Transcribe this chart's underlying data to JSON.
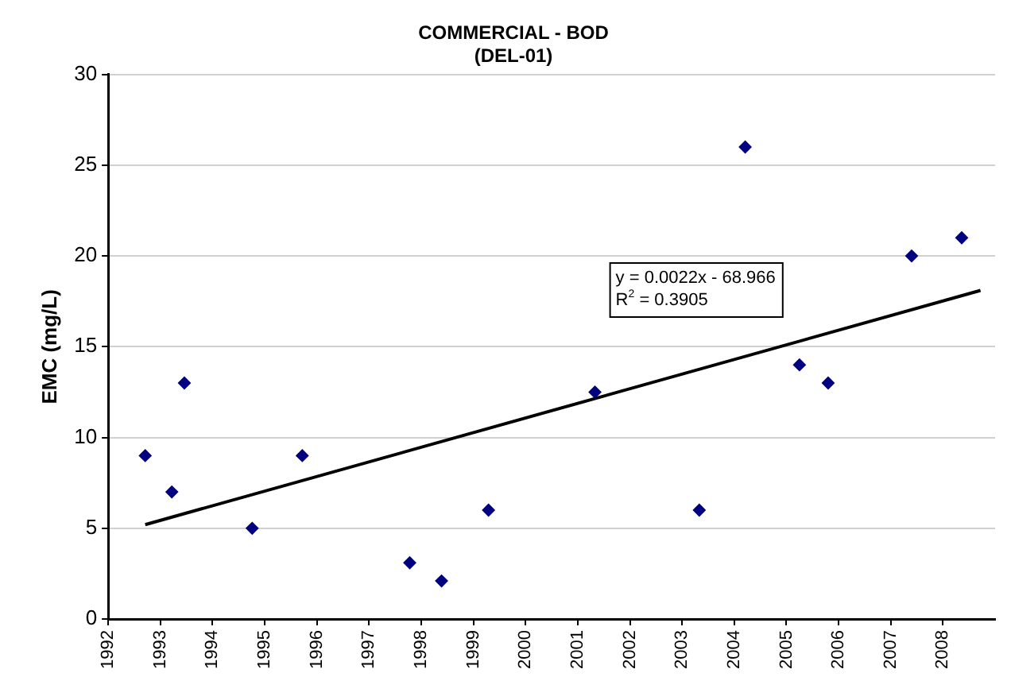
{
  "chart_data": {
    "type": "scatter",
    "title": [
      "COMMERCIAL - BOD",
      "(DEL-01)"
    ],
    "ylabel": "EMC (mg/L)",
    "xlim": [
      1992,
      2009
    ],
    "xticks": [
      1992,
      1993,
      1994,
      1995,
      1996,
      1997,
      1998,
      1999,
      2000,
      2001,
      2002,
      2003,
      2004,
      2005,
      2006,
      2007,
      2008
    ],
    "ylim": [
      0,
      30
    ],
    "yticks": [
      0,
      5,
      10,
      15,
      20,
      25,
      30
    ],
    "grid": "y",
    "legend": false,
    "marker": "diamond",
    "series": [
      {
        "type": "scatter",
        "color": "#000080",
        "x": [
          1992.71,
          1993.22,
          1993.46,
          1994.76,
          1995.72,
          1997.78,
          1998.39,
          1999.29,
          2001.33,
          2003.33,
          2004.21,
          2005.25,
          2005.8,
          2007.4,
          2008.36
        ],
        "values": [
          9,
          7,
          13,
          5,
          9,
          3.1,
          2.1,
          6,
          12.5,
          6,
          26,
          14,
          13,
          20,
          21
        ]
      },
      {
        "type": "line",
        "color": "#000000",
        "marker": "none",
        "x": [
          1992.71,
          2008.72
        ],
        "values": [
          5.2,
          18.1
        ]
      }
    ],
    "annotations": [
      "y = 0.0022x - 68.966\nR$^{2}$ = 0.3905"
    ]
  }
}
